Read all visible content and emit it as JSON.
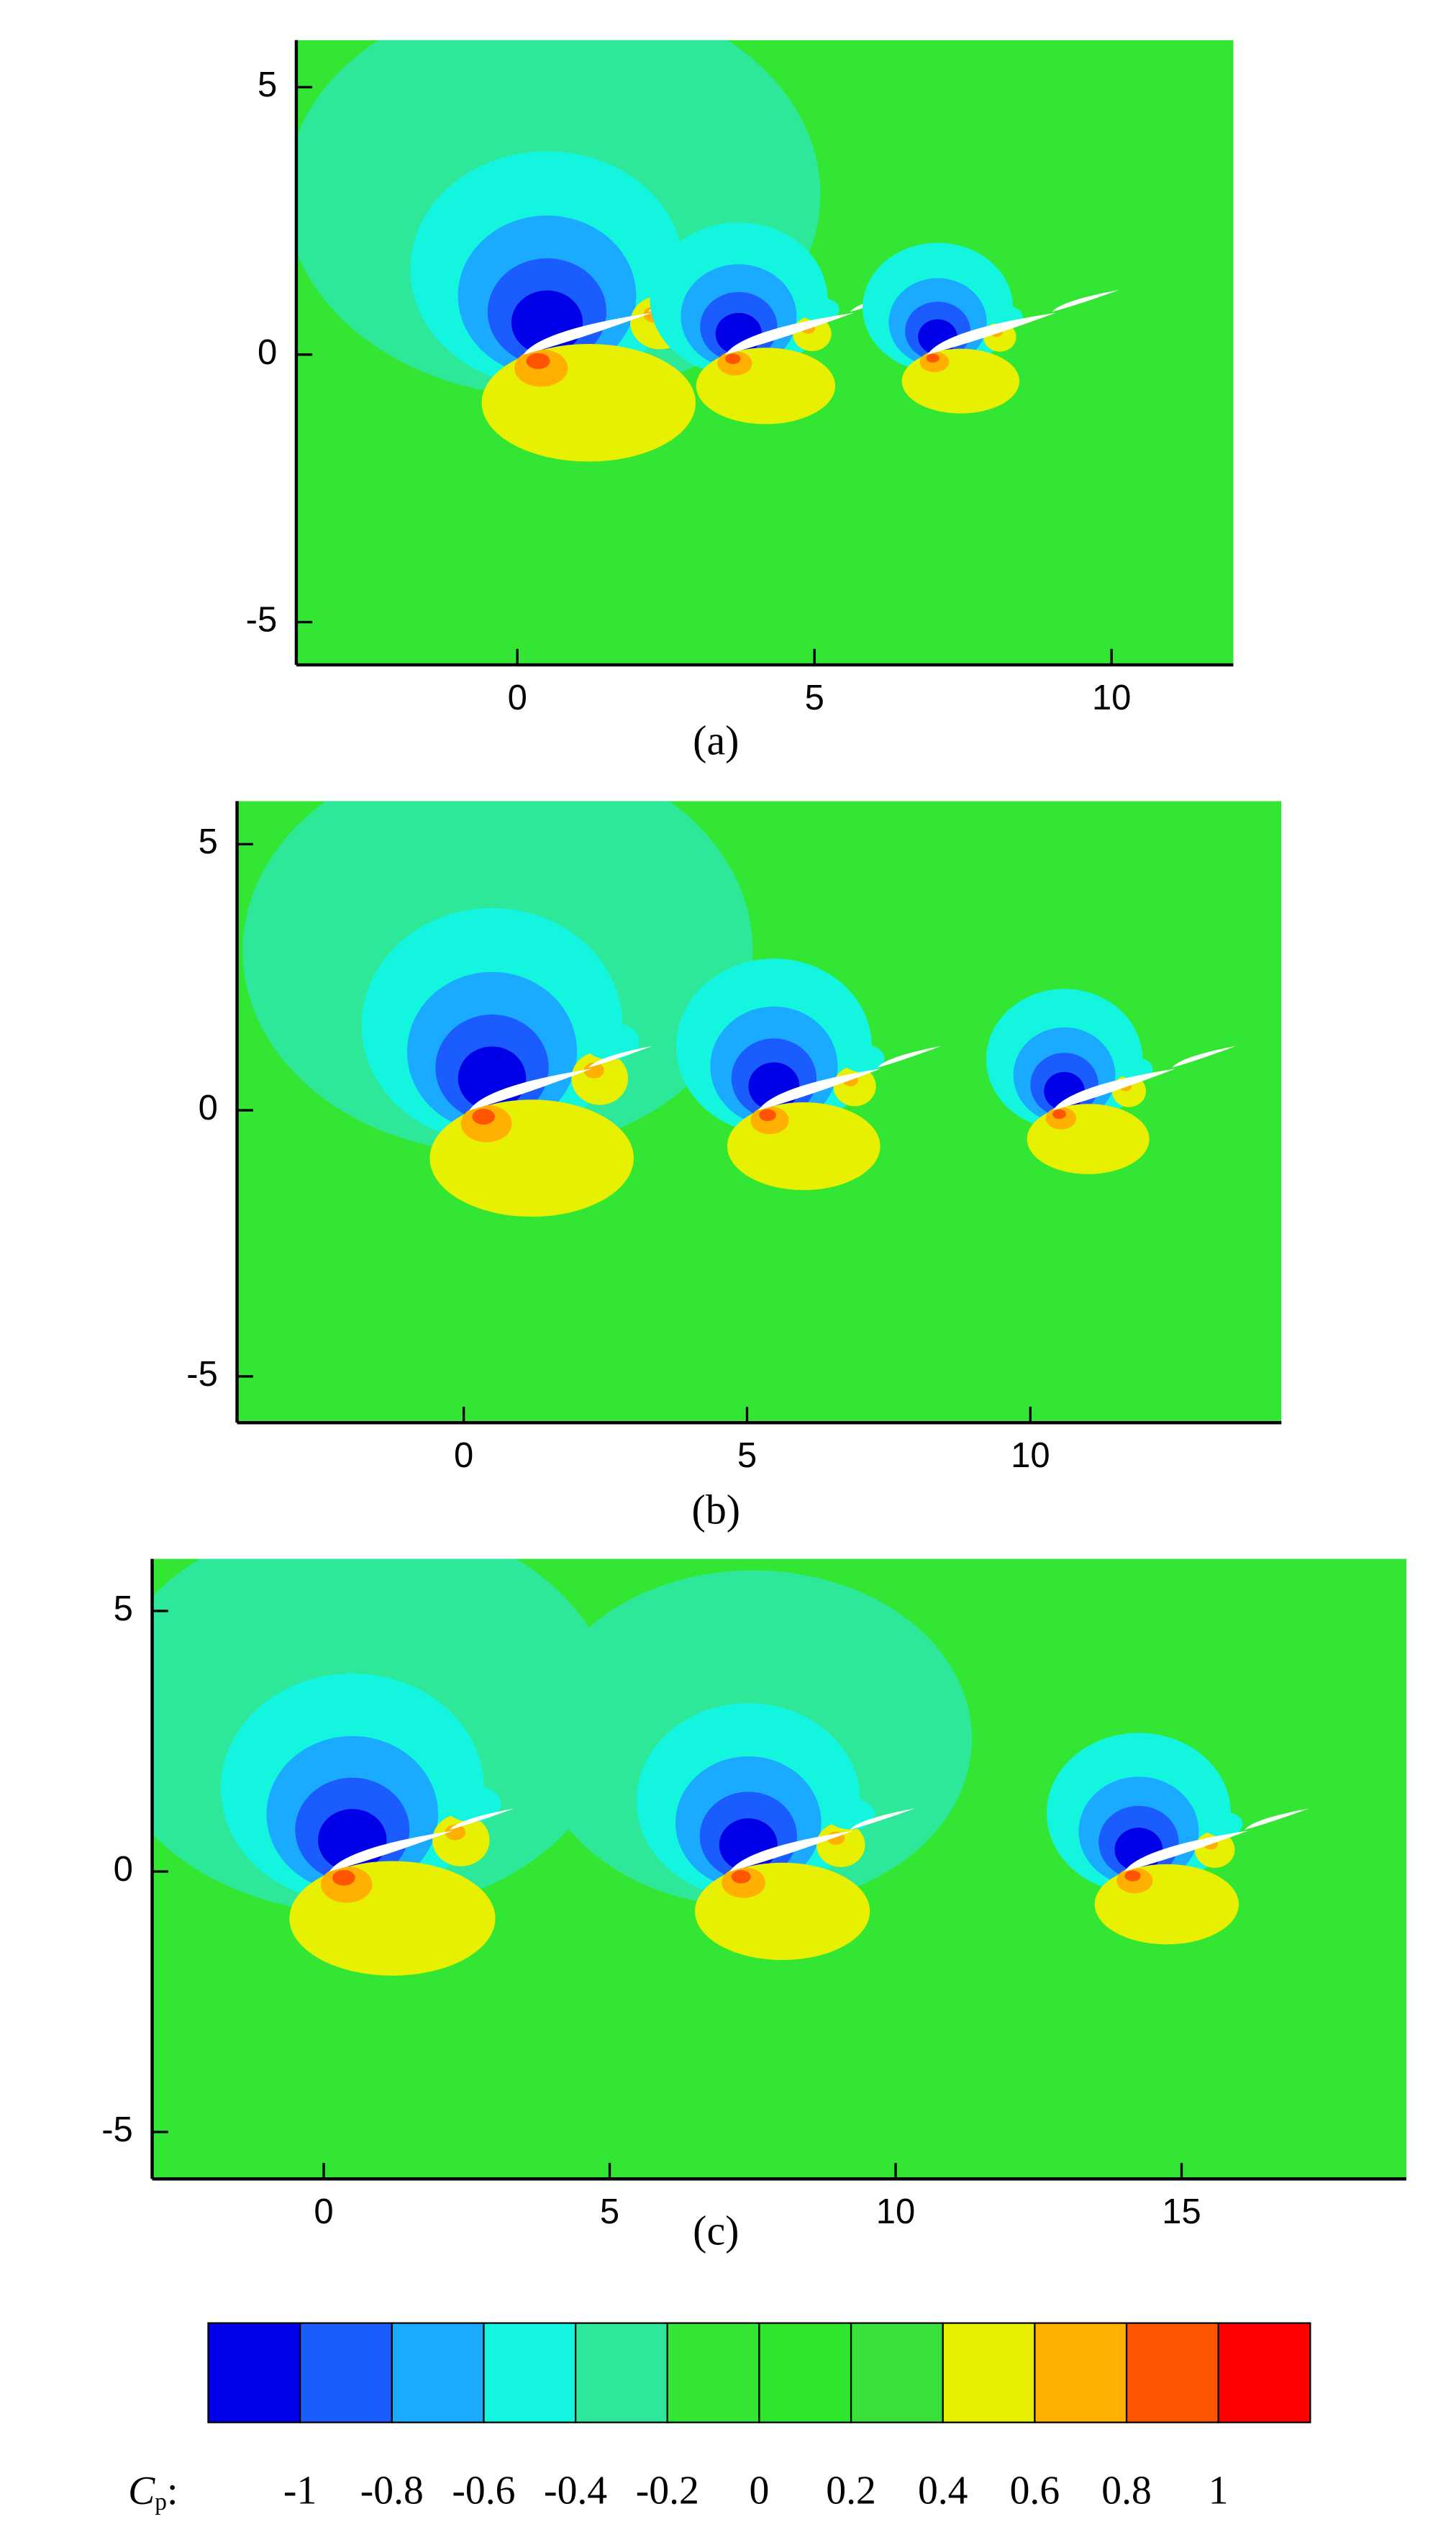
{
  "chart_data": [
    {
      "type": "contour",
      "caption": "(a)",
      "xlim": [
        -3.72,
        12.05
      ],
      "ylim": [
        -5.8,
        5.88
      ],
      "xticks": [
        0,
        5,
        10
      ],
      "yticks": [
        -5,
        0,
        5
      ]
    },
    {
      "type": "contour",
      "caption": "(b)",
      "xlim": [
        -4.0,
        14.43
      ],
      "ylim": [
        -5.87,
        5.81
      ],
      "xticks": [
        0,
        5,
        10
      ],
      "yticks": [
        -5,
        0,
        5
      ]
    },
    {
      "type": "contour",
      "caption": "(c)",
      "xlim": [
        -3.0,
        18.93
      ],
      "ylim": [
        -5.9,
        6.0
      ],
      "xticks": [
        0,
        5,
        10,
        15
      ],
      "yticks": [
        -5,
        0,
        5
      ]
    }
  ],
  "colorbar": {
    "label": {
      "symbol": "C",
      "subscript": "p",
      "suffix": ":"
    },
    "levels": [
      -1,
      -0.8,
      -0.6,
      -0.4,
      -0.2,
      0,
      0.2,
      0.4,
      0.6,
      0.8,
      1
    ],
    "colors": [
      "#0000e8",
      "#1a5cff",
      "#1aaaff",
      "#14f5e0",
      "#2ee89a",
      "#33e633",
      "#2ee62e",
      "#3ae03a",
      "#e6f000",
      "#ffb000",
      "#ff5500",
      "#ff0000"
    ]
  }
}
